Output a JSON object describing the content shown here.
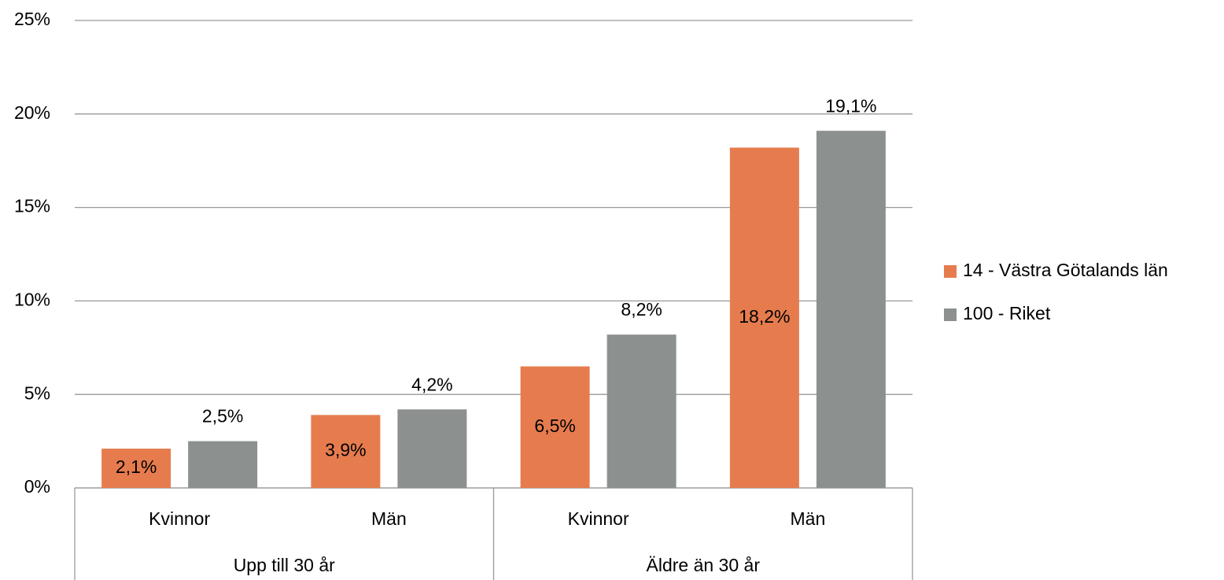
{
  "chart_data": {
    "type": "bar",
    "categories": [
      "Kvinnor",
      "Män",
      "Kvinnor",
      "Män"
    ],
    "groups": [
      {
        "label": "Upp till 30 år",
        "span": 2
      },
      {
        "label": "Äldre än 30 år",
        "span": 2
      }
    ],
    "series": [
      {
        "name": "14 - Västra Götalands län",
        "color": "#e67c4e",
        "values": [
          2.1,
          3.9,
          6.5,
          18.2
        ],
        "value_labels": [
          "2,1%",
          "3,9%",
          "6,5%",
          "18,2%"
        ]
      },
      {
        "name": "100 - Riket",
        "color": "#8c918f",
        "values": [
          2.5,
          4.2,
          8.2,
          19.1
        ],
        "value_labels": [
          "2,5%",
          "4,2%",
          "8,2%",
          "19,1%"
        ]
      }
    ],
    "ylim": [
      0,
      25
    ],
    "yticks": [
      {
        "value": 0,
        "label": "0%"
      },
      {
        "value": 5,
        "label": "5%"
      },
      {
        "value": 10,
        "label": "10%"
      },
      {
        "value": 15,
        "label": "15%"
      },
      {
        "value": 20,
        "label": "20%"
      },
      {
        "value": 25,
        "label": "25%"
      }
    ],
    "grid": true,
    "legend": "right"
  }
}
